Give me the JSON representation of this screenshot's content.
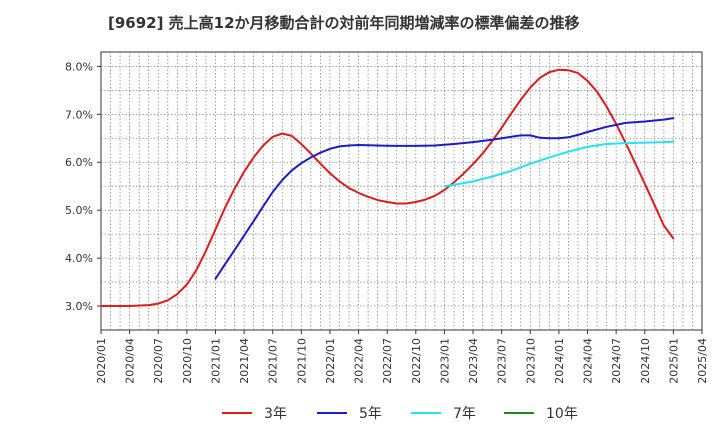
{
  "title": "[9692]  売上高12か月移動合計の対前年同期増減率の標準偏差の推移",
  "chart_data": {
    "type": "line",
    "title": "[9692]  売上高12か月移動合計の対前年同期増減率の標準偏差の推移",
    "xlabel": "",
    "ylabel": "",
    "x_ticks": [
      "2020/01",
      "2020/04",
      "2020/07",
      "2020/10",
      "2021/01",
      "2021/04",
      "2021/07",
      "2021/10",
      "2022/01",
      "2022/04",
      "2022/07",
      "2022/10",
      "2023/01",
      "2023/04",
      "2023/07",
      "2023/10",
      "2024/01",
      "2024/04",
      "2024/07",
      "2024/10",
      "2025/01",
      "2025/04"
    ],
    "y_ticks": [
      "3.0%",
      "4.0%",
      "5.0%",
      "6.0%",
      "7.0%",
      "8.0%"
    ],
    "ylim": [
      2.5,
      8.3
    ],
    "grid": true,
    "legend_position": "bottom",
    "series": [
      {
        "name": "3年",
        "color": "#dd1c1c",
        "x": [
          "2020/01",
          "2020/04",
          "2020/06",
          "2020/07",
          "2020/08",
          "2020/09",
          "2020/10",
          "2020/11",
          "2020/12",
          "2021/01",
          "2021/02",
          "2021/03",
          "2021/04",
          "2021/05",
          "2021/06",
          "2021/07",
          "2021/08",
          "2021/09",
          "2021/10",
          "2021/11",
          "2021/12",
          "2022/01",
          "2022/02",
          "2022/03",
          "2022/04",
          "2022/05",
          "2022/06",
          "2022/07",
          "2022/08",
          "2022/09",
          "2022/10",
          "2022/11",
          "2022/12",
          "2023/01",
          "2023/02",
          "2023/03",
          "2023/04",
          "2023/05",
          "2023/06",
          "2023/07",
          "2023/08",
          "2023/09",
          "2023/10",
          "2023/11",
          "2023/12",
          "2024/01",
          "2024/02",
          "2024/03",
          "2024/04",
          "2024/05",
          "2024/06",
          "2024/07",
          "2024/08",
          "2024/09",
          "2024/10",
          "2024/11",
          "2024/12",
          "2025/01"
        ],
        "values": [
          3.0,
          3.0,
          3.02,
          3.05,
          3.12,
          3.25,
          3.45,
          3.75,
          4.15,
          4.6,
          5.05,
          5.45,
          5.8,
          6.1,
          6.35,
          6.53,
          6.6,
          6.55,
          6.38,
          6.18,
          5.97,
          5.77,
          5.6,
          5.46,
          5.36,
          5.28,
          5.21,
          5.17,
          5.14,
          5.14,
          5.17,
          5.22,
          5.3,
          5.42,
          5.58,
          5.76,
          5.96,
          6.18,
          6.44,
          6.72,
          7.02,
          7.3,
          7.56,
          7.76,
          7.88,
          7.93,
          7.92,
          7.86,
          7.7,
          7.47,
          7.16,
          6.8,
          6.4,
          5.98,
          5.55,
          5.12,
          4.68,
          4.41
        ]
      },
      {
        "name": "5年",
        "color": "#1c1cc8",
        "x": [
          "2021/01",
          "2021/02",
          "2021/03",
          "2021/04",
          "2021/05",
          "2021/06",
          "2021/07",
          "2021/08",
          "2021/09",
          "2021/10",
          "2021/11",
          "2021/12",
          "2022/01",
          "2022/02",
          "2022/03",
          "2022/04",
          "2022/06",
          "2022/08",
          "2022/10",
          "2022/12",
          "2023/02",
          "2023/04",
          "2023/06",
          "2023/07",
          "2023/08",
          "2023/09",
          "2023/10",
          "2023/11",
          "2023/12",
          "2024/01",
          "2024/02",
          "2024/03",
          "2024/04",
          "2024/06",
          "2024/08",
          "2024/10",
          "2024/12",
          "2025/01"
        ],
        "values": [
          3.57,
          3.87,
          4.17,
          4.47,
          4.77,
          5.08,
          5.38,
          5.63,
          5.83,
          5.98,
          6.1,
          6.2,
          6.28,
          6.33,
          6.35,
          6.36,
          6.35,
          6.34,
          6.34,
          6.35,
          6.38,
          6.42,
          6.47,
          6.5,
          6.53,
          6.56,
          6.56,
          6.51,
          6.5,
          6.5,
          6.52,
          6.57,
          6.63,
          6.74,
          6.82,
          6.85,
          6.89,
          6.92
        ]
      },
      {
        "name": "7年",
        "color": "#22e4f0",
        "x": [
          "2023/01",
          "2023/02",
          "2023/04",
          "2023/06",
          "2023/08",
          "2023/10",
          "2023/12",
          "2024/02",
          "2024/04",
          "2024/06",
          "2024/08",
          "2024/10",
          "2024/12",
          "2025/01"
        ],
        "values": [
          5.5,
          5.53,
          5.6,
          5.7,
          5.82,
          5.97,
          6.1,
          6.22,
          6.32,
          6.38,
          6.4,
          6.41,
          6.42,
          6.43
        ]
      },
      {
        "name": "10年",
        "color": "#1a8a1a",
        "x": [],
        "values": []
      }
    ]
  }
}
